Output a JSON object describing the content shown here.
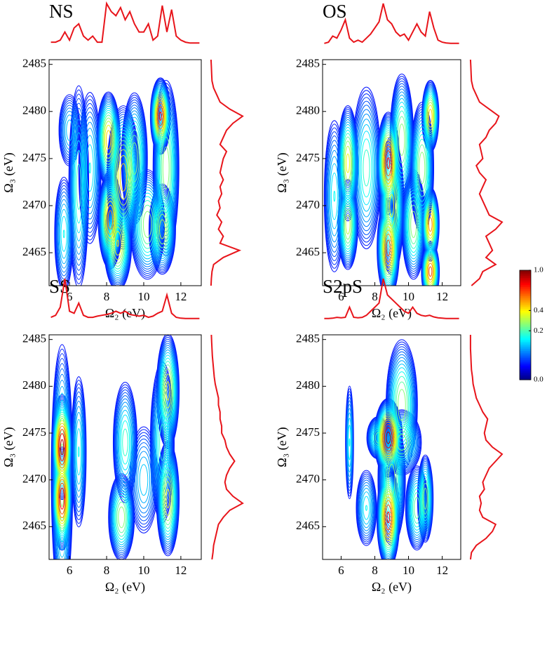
{
  "chart_data": [
    {
      "type": "contour",
      "title": "NS",
      "xlabel": "Ω₂ (eV)",
      "ylabel": "Ω₃ (eV)",
      "xlim": [
        4.9,
        13.1
      ],
      "ylim": [
        2461.5,
        2485.5
      ],
      "xticks": [
        6,
        8,
        10,
        12
      ],
      "yticks": [
        2465,
        2470,
        2475,
        2480,
        2485
      ],
      "line_color": "#e8141a",
      "peaks": [
        {
          "x": 5.7,
          "y": 2467,
          "sx": 0.25,
          "sy": 3,
          "amplitude": 0.15
        },
        {
          "x": 6.5,
          "y": 2472,
          "sx": 0.25,
          "sy": 5,
          "amplitude": 0.2
        },
        {
          "x": 7.1,
          "y": 2474,
          "sx": 0.3,
          "sy": 4,
          "amplitude": 0.15
        },
        {
          "x": 6.0,
          "y": 2478,
          "sx": 0.3,
          "sy": 2,
          "amplitude": 0.12
        },
        {
          "x": 8.1,
          "y": 2477,
          "sx": 0.25,
          "sy": 2,
          "amplitude": 0.5
        },
        {
          "x": 8.2,
          "y": 2468.5,
          "sx": 0.25,
          "sy": 2,
          "amplitude": 0.6
        },
        {
          "x": 8.6,
          "y": 2466,
          "sx": 0.3,
          "sy": 2,
          "amplitude": 0.45
        },
        {
          "x": 8.9,
          "y": 2473,
          "sx": 0.35,
          "sy": 3,
          "amplitude": 0.5
        },
        {
          "x": 9.5,
          "y": 2475,
          "sx": 0.3,
          "sy": 3,
          "amplitude": 0.3
        },
        {
          "x": 10.2,
          "y": 2468,
          "sx": 0.4,
          "sy": 2.5,
          "amplitude": 0.3
        },
        {
          "x": 10.9,
          "y": 2479.5,
          "sx": 0.2,
          "sy": 1.5,
          "amplitude": 0.8
        },
        {
          "x": 11.2,
          "y": 2474,
          "sx": 0.3,
          "sy": 4,
          "amplitude": 0.3
        },
        {
          "x": 11.0,
          "y": 2467.5,
          "sx": 0.3,
          "sy": 2,
          "amplitude": 0.35
        }
      ],
      "top_spectrum": {
        "x": [
          5,
          5.25,
          5.5,
          5.75,
          6,
          6.25,
          6.5,
          6.75,
          7,
          7.25,
          7.5,
          7.75,
          8,
          8.25,
          8.5,
          8.75,
          9,
          9.25,
          9.5,
          9.75,
          10,
          10.25,
          10.5,
          10.75,
          11,
          11.25,
          11.5,
          11.75,
          12,
          12.25,
          12.5,
          12.75,
          13
        ],
        "values": [
          0.05,
          0.05,
          0.1,
          0.3,
          0.1,
          0.4,
          0.5,
          0.2,
          0.1,
          0.2,
          0.05,
          0.05,
          1.0,
          0.8,
          0.7,
          0.9,
          0.6,
          0.8,
          0.5,
          0.3,
          0.3,
          0.5,
          0.1,
          0.2,
          0.95,
          0.3,
          0.85,
          0.2,
          0.1,
          0.05,
          0.03,
          0.03,
          0.03
        ]
      },
      "right_spectrum": {
        "y": [
          2461.5,
          2462.25,
          2463,
          2463.75,
          2464.5,
          2465.25,
          2466,
          2466.75,
          2467.5,
          2468.25,
          2469,
          2469.75,
          2470.5,
          2471.25,
          2472,
          2472.75,
          2473.5,
          2474.25,
          2475,
          2475.75,
          2476.5,
          2477.25,
          2478,
          2478.75,
          2479.5,
          2480.25,
          2481,
          2481.75,
          2482.5,
          2483.25,
          2484,
          2484.75,
          2485.5
        ],
        "values": [
          0.02,
          0.03,
          0.05,
          0.1,
          0.4,
          0.9,
          0.3,
          0.4,
          0.25,
          0.35,
          0.2,
          0.3,
          0.25,
          0.35,
          0.3,
          0.4,
          0.3,
          0.35,
          0.4,
          0.5,
          0.3,
          0.4,
          0.5,
          0.7,
          1.0,
          0.6,
          0.3,
          0.2,
          0.1,
          0.05,
          0.04,
          0.03,
          0.02
        ]
      }
    },
    {
      "type": "contour",
      "title": "OS",
      "xlabel": "Ω₂ (eV)",
      "ylabel": "Ω₃ (eV)",
      "xlim": [
        4.9,
        13.1
      ],
      "ylim": [
        2461.5,
        2485.5
      ],
      "xticks": [
        6,
        8,
        10,
        12
      ],
      "yticks": [
        2465,
        2470,
        2475,
        2480,
        2485
      ],
      "line_color": "#e8141a",
      "peaks": [
        {
          "x": 6.4,
          "y": 2474.5,
          "sx": 0.25,
          "sy": 2.5,
          "amplitude": 0.4
        },
        {
          "x": 6.4,
          "y": 2468,
          "sx": 0.25,
          "sy": 2,
          "amplitude": 0.35
        },
        {
          "x": 5.6,
          "y": 2471,
          "sx": 0.3,
          "sy": 4,
          "amplitude": 0.15
        },
        {
          "x": 7.5,
          "y": 2474,
          "sx": 0.4,
          "sy": 4,
          "amplitude": 0.2
        },
        {
          "x": 8.8,
          "y": 2474.5,
          "sx": 0.25,
          "sy": 2,
          "amplitude": 0.8
        },
        {
          "x": 8.8,
          "y": 2465.5,
          "sx": 0.25,
          "sy": 2,
          "amplitude": 0.7
        },
        {
          "x": 9.0,
          "y": 2470,
          "sx": 0.3,
          "sy": 3,
          "amplitude": 0.4
        },
        {
          "x": 9.6,
          "y": 2477,
          "sx": 0.3,
          "sy": 3,
          "amplitude": 0.3
        },
        {
          "x": 10.3,
          "y": 2468,
          "sx": 0.3,
          "sy": 2.5,
          "amplitude": 0.3
        },
        {
          "x": 11.3,
          "y": 2479.5,
          "sx": 0.2,
          "sy": 1.5,
          "amplitude": 0.5
        },
        {
          "x": 11.3,
          "y": 2468,
          "sx": 0.2,
          "sy": 1.5,
          "amplitude": 0.6
        },
        {
          "x": 11.3,
          "y": 2463,
          "sx": 0.2,
          "sy": 1.2,
          "amplitude": 0.7
        },
        {
          "x": 10.8,
          "y": 2474,
          "sx": 0.3,
          "sy": 3,
          "amplitude": 0.3
        }
      ],
      "top_spectrum": {
        "x": [
          5,
          5.25,
          5.5,
          5.75,
          6,
          6.25,
          6.5,
          6.75,
          7,
          7.25,
          7.5,
          7.75,
          8,
          8.25,
          8.5,
          8.75,
          9,
          9.25,
          9.5,
          9.75,
          10,
          10.25,
          10.5,
          10.75,
          11,
          11.25,
          11.5,
          11.75,
          12,
          12.25,
          12.5,
          12.75,
          13
        ],
        "values": [
          0.02,
          0.05,
          0.2,
          0.15,
          0.35,
          0.6,
          0.15,
          0.05,
          0.1,
          0.05,
          0.15,
          0.25,
          0.4,
          0.55,
          1.0,
          0.6,
          0.5,
          0.3,
          0.2,
          0.25,
          0.1,
          0.3,
          0.5,
          0.3,
          0.2,
          0.8,
          0.4,
          0.1,
          0.05,
          0.03,
          0.02,
          0.02,
          0.02
        ]
      },
      "right_spectrum": {
        "y": [
          2461.5,
          2462.25,
          2463,
          2463.75,
          2464.5,
          2465.25,
          2466,
          2466.75,
          2467.5,
          2468.25,
          2469,
          2469.75,
          2470.5,
          2471.25,
          2472,
          2472.75,
          2473.5,
          2474.25,
          2475,
          2475.75,
          2476.5,
          2477.25,
          2478,
          2478.75,
          2479.5,
          2480.25,
          2481,
          2481.75,
          2482.5,
          2483.25,
          2484,
          2484.75,
          2485.5
        ],
        "values": [
          0.05,
          0.3,
          0.4,
          0.8,
          0.5,
          0.7,
          0.6,
          0.5,
          0.8,
          1.0,
          0.6,
          0.5,
          0.4,
          0.3,
          0.4,
          0.5,
          0.3,
          0.2,
          0.4,
          0.35,
          0.3,
          0.5,
          0.6,
          0.8,
          0.9,
          0.6,
          0.3,
          0.2,
          0.1,
          0.05,
          0.04,
          0.03,
          0.02
        ]
      }
    },
    {
      "type": "contour",
      "title": "SS",
      "xlabel": "Ω₂ (eV)",
      "ylabel": "Ω₃ (eV)",
      "xlim": [
        4.9,
        13.1
      ],
      "ylim": [
        2461.5,
        2485.5
      ],
      "xticks": [
        6,
        8,
        10,
        12
      ],
      "yticks": [
        2465,
        2470,
        2475,
        2480,
        2485
      ],
      "line_color": "#e8141a",
      "peaks": [
        {
          "x": 5.6,
          "y": 2470.5,
          "sx": 0.25,
          "sy": 6,
          "amplitude": 0.3
        },
        {
          "x": 5.6,
          "y": 2473.5,
          "sx": 0.2,
          "sy": 2,
          "amplitude": 1.0
        },
        {
          "x": 5.6,
          "y": 2468,
          "sx": 0.2,
          "sy": 2,
          "amplitude": 0.9
        },
        {
          "x": 6.5,
          "y": 2473,
          "sx": 0.2,
          "sy": 4,
          "amplitude": 0.15
        },
        {
          "x": 8.8,
          "y": 2466,
          "sx": 0.3,
          "sy": 2,
          "amplitude": 0.3
        },
        {
          "x": 9.0,
          "y": 2474,
          "sx": 0.3,
          "sy": 3,
          "amplitude": 0.2
        },
        {
          "x": 10.0,
          "y": 2470,
          "sx": 0.4,
          "sy": 3,
          "amplitude": 0.12
        },
        {
          "x": 11.3,
          "y": 2479.5,
          "sx": 0.25,
          "sy": 2.5,
          "amplitude": 0.4
        },
        {
          "x": 11.3,
          "y": 2468,
          "sx": 0.25,
          "sy": 2.5,
          "amplitude": 0.4
        },
        {
          "x": 11.0,
          "y": 2474,
          "sx": 0.3,
          "sy": 4,
          "amplitude": 0.2
        }
      ],
      "top_spectrum": {
        "x": [
          5,
          5.25,
          5.5,
          5.75,
          6,
          6.25,
          6.5,
          6.75,
          7,
          7.25,
          7.5,
          7.75,
          8,
          8.25,
          8.5,
          8.75,
          9,
          9.25,
          9.5,
          9.75,
          10,
          10.25,
          10.5,
          10.75,
          11,
          11.25,
          11.5,
          11.75,
          12,
          12.25,
          12.5,
          12.75,
          13
        ],
        "values": [
          0.05,
          0.1,
          0.3,
          1.0,
          0.2,
          0.15,
          0.4,
          0.1,
          0.05,
          0.05,
          0.08,
          0.1,
          0.12,
          0.15,
          0.2,
          0.15,
          0.2,
          0.12,
          0.1,
          0.08,
          0.1,
          0.05,
          0.08,
          0.15,
          0.2,
          0.6,
          0.15,
          0.05,
          0.03,
          0.02,
          0.02,
          0.02,
          0.02
        ]
      },
      "right_spectrum": {
        "y": [
          2461.5,
          2462.25,
          2463,
          2463.75,
          2464.5,
          2465.25,
          2466,
          2466.75,
          2467.5,
          2468.25,
          2469,
          2469.75,
          2470.5,
          2471.25,
          2472,
          2472.75,
          2473.5,
          2474.25,
          2475,
          2475.75,
          2476.5,
          2477.25,
          2478,
          2478.75,
          2479.5,
          2480.25,
          2481,
          2481.75,
          2482.5,
          2483.25,
          2484,
          2484.75,
          2485.5
        ],
        "values": [
          0.05,
          0.08,
          0.1,
          0.15,
          0.2,
          0.25,
          0.4,
          0.6,
          1.0,
          0.7,
          0.5,
          0.45,
          0.5,
          0.6,
          0.75,
          0.6,
          0.5,
          0.45,
          0.35,
          0.35,
          0.3,
          0.3,
          0.25,
          0.25,
          0.2,
          0.15,
          0.12,
          0.1,
          0.08,
          0.06,
          0.05,
          0.04,
          0.03
        ]
      }
    },
    {
      "type": "contour",
      "title": "S2pS",
      "xlabel": "Ω₂ (eV)",
      "ylabel": "Ω₃ (eV)",
      "xlim": [
        4.9,
        13.1
      ],
      "ylim": [
        2461.5,
        2485.5
      ],
      "xticks": [
        6,
        8,
        10,
        12
      ],
      "yticks": [
        2465,
        2470,
        2475,
        2480,
        2485
      ],
      "line_color": "#e8141a",
      "peaks": [
        {
          "x": 8.8,
          "y": 2474.5,
          "sx": 0.3,
          "sy": 1.5,
          "amplitude": 1.0
        },
        {
          "x": 8.8,
          "y": 2466,
          "sx": 0.25,
          "sy": 2,
          "amplitude": 0.8
        },
        {
          "x": 9.0,
          "y": 2470,
          "sx": 0.35,
          "sy": 3,
          "amplitude": 0.3
        },
        {
          "x": 9.6,
          "y": 2478,
          "sx": 0.4,
          "sy": 3,
          "amplitude": 0.3
        },
        {
          "x": 9.6,
          "y": 2474,
          "sx": 0.5,
          "sy": 1.5,
          "amplitude": 0.3
        },
        {
          "x": 10.5,
          "y": 2467,
          "sx": 0.3,
          "sy": 2,
          "amplitude": 0.25
        },
        {
          "x": 11.0,
          "y": 2468,
          "sx": 0.2,
          "sy": 2,
          "amplitude": 0.3
        },
        {
          "x": 6.5,
          "y": 2474,
          "sx": 0.12,
          "sy": 3,
          "amplitude": 0.15
        },
        {
          "x": 8.2,
          "y": 2474.5,
          "sx": 0.3,
          "sy": 1,
          "amplitude": 0.25
        },
        {
          "x": 7.5,
          "y": 2467,
          "sx": 0.3,
          "sy": 2,
          "amplitude": 0.15
        }
      ],
      "top_spectrum": {
        "x": [
          5,
          5.25,
          5.5,
          5.75,
          6,
          6.25,
          6.5,
          6.75,
          7,
          7.25,
          7.5,
          7.75,
          8,
          8.25,
          8.5,
          8.75,
          9,
          9.25,
          9.5,
          9.75,
          10,
          10.25,
          10.5,
          10.75,
          11,
          11.25,
          11.5,
          11.75,
          12,
          12.25,
          12.5,
          12.75,
          13
        ],
        "values": [
          0.02,
          0.02,
          0.03,
          0.05,
          0.04,
          0.05,
          0.3,
          0.05,
          0.04,
          0.05,
          0.1,
          0.2,
          0.3,
          0.4,
          1.0,
          0.6,
          0.5,
          0.4,
          0.3,
          0.2,
          0.15,
          0.3,
          0.15,
          0.1,
          0.08,
          0.1,
          0.06,
          0.04,
          0.03,
          0.02,
          0.02,
          0.02,
          0.02
        ]
      },
      "right_spectrum": {
        "y": [
          2461.5,
          2462.25,
          2463,
          2463.75,
          2464.5,
          2465.25,
          2466,
          2466.75,
          2467.5,
          2468.25,
          2469,
          2469.75,
          2470.5,
          2471.25,
          2472,
          2472.75,
          2473.5,
          2474.25,
          2475,
          2475.75,
          2476.5,
          2477.25,
          2478,
          2478.75,
          2479.5,
          2480.25,
          2481,
          2481.75,
          2482.5,
          2483.25,
          2484,
          2484.75,
          2485.5
        ],
        "values": [
          0.02,
          0.05,
          0.2,
          0.5,
          0.7,
          0.8,
          0.4,
          0.3,
          0.35,
          0.3,
          0.45,
          0.4,
          0.5,
          0.6,
          0.8,
          1.0,
          0.7,
          0.5,
          0.45,
          0.5,
          0.55,
          0.4,
          0.3,
          0.2,
          0.15,
          0.1,
          0.08,
          0.05,
          0.04,
          0.03,
          0.02,
          0.02,
          0.02
        ]
      }
    }
  ],
  "colorbar": {
    "scale": "sqrt",
    "colormap": "jet",
    "ticks": [
      {
        "value": 0,
        "label": "0.0"
      },
      0.2,
      0.4,
      {
        "value": 1,
        "label": "1.0"
      }
    ]
  }
}
